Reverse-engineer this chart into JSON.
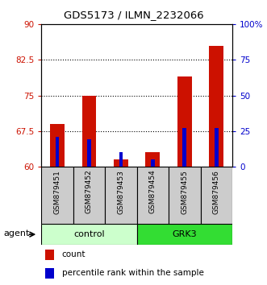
{
  "title": "GDS5173 / ILMN_2232066",
  "samples": [
    "GSM879451",
    "GSM879452",
    "GSM879453",
    "GSM879454",
    "GSM879455",
    "GSM879456"
  ],
  "count_values": [
    69.0,
    75.0,
    61.5,
    63.0,
    79.0,
    85.5
  ],
  "percentile_values": [
    21,
    19,
    10,
    5,
    27,
    27
  ],
  "ylim_left": [
    60,
    90
  ],
  "ylim_right": [
    0,
    100
  ],
  "yticks_left": [
    60,
    67.5,
    75,
    82.5,
    90
  ],
  "yticks_right": [
    0,
    25,
    50,
    75,
    100
  ],
  "ytick_labels_right": [
    "0",
    "25",
    "50",
    "75",
    "100%"
  ],
  "bar_color": "#cc1100",
  "pct_color": "#0000cc",
  "groups": [
    {
      "label": "control",
      "samples": [
        0,
        1,
        2
      ],
      "color": "#ccffcc"
    },
    {
      "label": "GRK3",
      "samples": [
        3,
        4,
        5
      ],
      "color": "#33dd33"
    }
  ],
  "agent_label": "agent",
  "legend_count_label": "count",
  "legend_pct_label": "percentile rank within the sample",
  "bar_width": 0.45,
  "pct_bar_width": 0.12,
  "xlabel_bg": "#cccccc",
  "figsize": [
    3.31,
    3.54
  ],
  "dpi": 100
}
